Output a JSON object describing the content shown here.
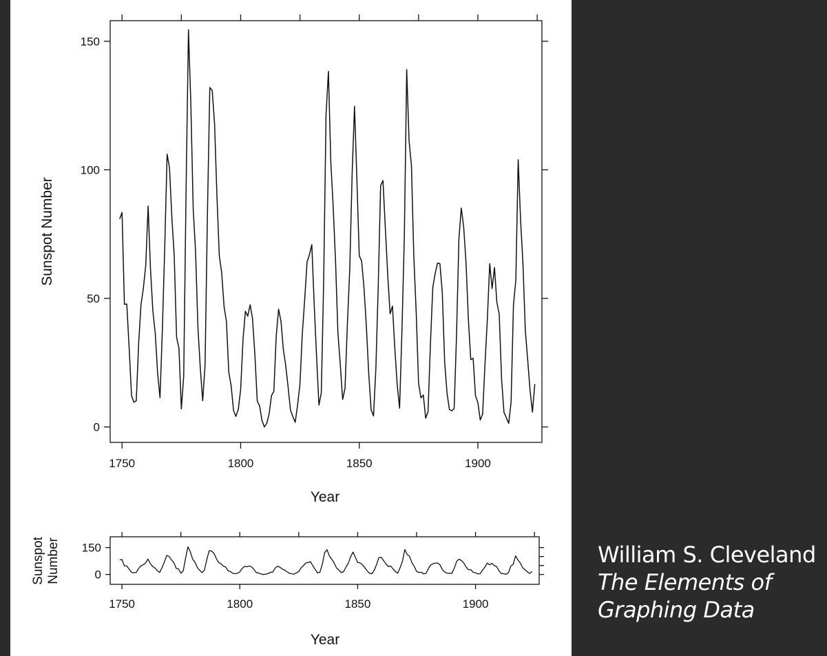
{
  "credit": {
    "author": "William S. Cleveland",
    "book_line1": "The Elements of",
    "book_line2": "Graphing Data"
  },
  "colors": {
    "background": "#2b2b2b",
    "paper": "#ffffff",
    "ink": "#111111",
    "credit_text": "#ffffff"
  },
  "chart_data": [
    {
      "type": "line",
      "title": "",
      "xlabel": "Year",
      "ylabel": "Sunspot Number",
      "xlim": [
        1745,
        1927
      ],
      "ylim": [
        -6,
        158
      ],
      "xticks": [
        1750,
        1800,
        1850,
        1900
      ],
      "yticks": [
        0,
        50,
        100,
        150
      ],
      "grid": false,
      "series": [
        {
          "x": [
            1749,
            1750,
            1751,
            1752,
            1753,
            1754,
            1755,
            1756,
            1757,
            1758,
            1759,
            1760,
            1761,
            1762,
            1763,
            1764,
            1765,
            1766,
            1767,
            1768,
            1769,
            1770,
            1771,
            1772,
            1773,
            1774,
            1775,
            1776,
            1777,
            1778,
            1779,
            1780,
            1781,
            1782,
            1783,
            1784,
            1785,
            1786,
            1787,
            1788,
            1789,
            1790,
            1791,
            1792,
            1793,
            1794,
            1795,
            1796,
            1797,
            1798,
            1799,
            1800,
            1801,
            1802,
            1803,
            1804,
            1805,
            1806,
            1807,
            1808,
            1809,
            1810,
            1811,
            1812,
            1813,
            1814,
            1815,
            1816,
            1817,
            1818,
            1819,
            1820,
            1821,
            1822,
            1823,
            1824,
            1825,
            1826,
            1827,
            1828,
            1829,
            1830,
            1831,
            1832,
            1833,
            1834,
            1835,
            1836,
            1837,
            1838,
            1839,
            1840,
            1841,
            1842,
            1843,
            1844,
            1845,
            1846,
            1847,
            1848,
            1849,
            1850,
            1851,
            1852,
            1853,
            1854,
            1855,
            1856,
            1857,
            1858,
            1859,
            1860,
            1861,
            1862,
            1863,
            1864,
            1865,
            1866,
            1867,
            1868,
            1869,
            1870,
            1871,
            1872,
            1873,
            1874,
            1875,
            1876,
            1877,
            1878,
            1879,
            1880,
            1881,
            1882,
            1883,
            1884,
            1885,
            1886,
            1887,
            1888,
            1889,
            1890,
            1891,
            1892,
            1893,
            1894,
            1895,
            1896,
            1897,
            1898,
            1899,
            1900,
            1901,
            1902,
            1903,
            1904,
            1905,
            1906,
            1907,
            1908,
            1909,
            1910,
            1911,
            1912,
            1913,
            1914,
            1915,
            1916,
            1917,
            1918,
            1919,
            1920,
            1921,
            1922,
            1923,
            1924
          ],
          "y": [
            80.9,
            83.4,
            47.7,
            47.8,
            30.7,
            12.2,
            9.6,
            10.2,
            32.4,
            47.6,
            54.0,
            62.9,
            85.9,
            61.2,
            45.1,
            36.4,
            20.9,
            11.4,
            37.8,
            69.8,
            106.1,
            100.8,
            81.6,
            66.5,
            34.8,
            30.6,
            7.0,
            19.8,
            92.5,
            154.4,
            125.9,
            84.8,
            68.1,
            38.5,
            22.8,
            10.2,
            24.1,
            82.9,
            132.0,
            130.9,
            118.1,
            89.9,
            66.6,
            60.0,
            46.9,
            41.0,
            21.3,
            16.0,
            6.4,
            4.1,
            6.8,
            14.5,
            34.0,
            45.0,
            43.1,
            47.5,
            42.2,
            28.1,
            10.1,
            8.1,
            2.5,
            0.0,
            1.4,
            5.0,
            12.2,
            13.9,
            35.4,
            45.8,
            41.1,
            30.1,
            23.9,
            15.6,
            6.6,
            4.0,
            1.8,
            8.5,
            16.6,
            36.3,
            49.6,
            64.2,
            67.0,
            70.9,
            47.8,
            27.5,
            8.5,
            13.2,
            56.9,
            121.5,
            138.3,
            103.2,
            85.7,
            64.6,
            36.7,
            24.2,
            10.7,
            15.0,
            40.1,
            61.5,
            98.5,
            124.7,
            96.3,
            66.6,
            64.5,
            54.1,
            39.0,
            20.6,
            6.7,
            4.3,
            22.7,
            54.8,
            93.8,
            95.8,
            77.2,
            59.1,
            44.0,
            47.0,
            30.5,
            16.3,
            7.3,
            37.6,
            74.0,
            139.0,
            111.2,
            101.6,
            66.2,
            44.7,
            17.0,
            11.3,
            12.4,
            3.4,
            6.0,
            32.3,
            54.3,
            59.7,
            63.7,
            63.5,
            52.2,
            25.4,
            13.1,
            6.8,
            6.3,
            7.1,
            35.6,
            73.0,
            85.1,
            78.0,
            64.0,
            41.8,
            26.2,
            26.7,
            12.1,
            9.5,
            2.7,
            5.0,
            24.4,
            42.0,
            63.5,
            53.8,
            62.0,
            48.5,
            43.9,
            18.6,
            5.7,
            3.6,
            1.4,
            9.6,
            47.4,
            57.1,
            103.9,
            80.6,
            63.6,
            37.6,
            26.1,
            14.2,
            5.8,
            16.7
          ]
        }
      ]
    },
    {
      "type": "line",
      "title": "",
      "xlabel": "Year",
      "ylabel_lines": [
        "Sunspot",
        "Number"
      ],
      "xlim": [
        1745,
        1927
      ],
      "ylim": [
        -55,
        210
      ],
      "xticks": [
        1750,
        1800,
        1850,
        1900
      ],
      "yticks": [
        0,
        150
      ],
      "grid": false,
      "series_ref": "same data as panel 1"
    }
  ]
}
